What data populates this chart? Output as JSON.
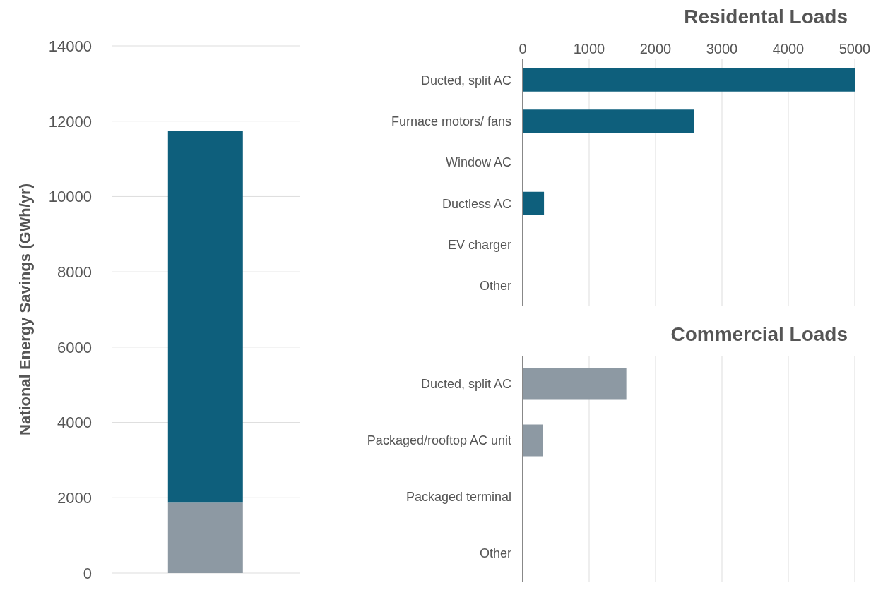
{
  "chart_data": [
    {
      "type": "bar",
      "stacked": true,
      "ylabel": "National Energy Savings (GWh/yr)",
      "categories": [
        null
      ],
      "series": [
        {
          "color": "#8d99a3",
          "values": [
            1870
          ]
        },
        {
          "color": "#0e5f7c",
          "values": [
            9880
          ]
        }
      ],
      "ylim": [
        0,
        14000
      ],
      "yticks": [
        0,
        2000,
        4000,
        6000,
        8000,
        10000,
        12000,
        14000
      ],
      "grid": "y",
      "tick_labels": "y"
    },
    {
      "type": "bar",
      "orientation": "horizontal",
      "title": "Residental Loads",
      "categories": [
        "Ducted, split AC",
        "Furnace motors/ fans",
        "Window AC",
        "Ductless AC",
        "EV charger",
        "Other"
      ],
      "values": [
        5000,
        2580,
        0,
        320,
        0,
        0
      ],
      "color": "#0e5f7c",
      "xlim": [
        0,
        5000
      ],
      "xticks": [
        0,
        1000,
        2000,
        3000,
        4000,
        5000
      ],
      "grid": "x"
    },
    {
      "type": "bar",
      "orientation": "horizontal",
      "title": "Commercial Loads",
      "categories": [
        "Ducted, split AC",
        "Packaged/rooftop AC unit",
        "Packaged terminal",
        "Other"
      ],
      "values": [
        1560,
        300,
        0,
        0
      ],
      "color": "#8d99a3",
      "xlim": [
        0,
        5000
      ],
      "xticks": [
        0,
        1000,
        2000,
        3000,
        4000,
        5000
      ],
      "grid": "x",
      "tick_labels": "y"
    }
  ]
}
